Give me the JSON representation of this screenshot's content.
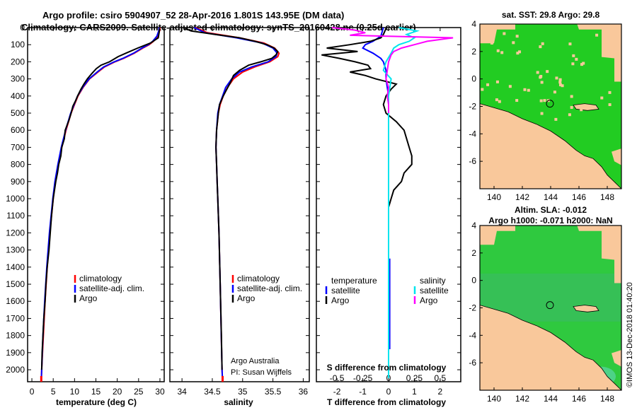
{
  "header": {
    "line1": "Argo profile: csiro 5904907_52 28-Apr-2016 1.801S 143.95E (DM data)",
    "line2": "Climatology: CARS2009. Satellite-adjusted climatology: synTS_20160428.nc (0.25d earlier)"
  },
  "colors": {
    "climatology": "#ff0000",
    "satellite": "#0000ff",
    "argo": "#000000",
    "satellite_salinity": "#00e5ee",
    "argo_salinity": "#ff00ff",
    "land": "#f9c89b",
    "ocean_sst": "#22cc22",
    "ocean_sla": "#2fc93f"
  },
  "depth_axis": {
    "ylim": [
      0,
      2070
    ],
    "ticks": [
      0,
      100,
      200,
      300,
      400,
      500,
      600,
      700,
      800,
      900,
      1000,
      1100,
      1200,
      1300,
      1400,
      1500,
      1600,
      1700,
      1800,
      1900,
      2000
    ]
  },
  "chart_data": [
    {
      "id": "temperature",
      "type": "line",
      "xlabel": "temperature (deg C)",
      "xlim": [
        -1,
        31
      ],
      "xticks": [
        0,
        5,
        10,
        15,
        20,
        25,
        30
      ],
      "xtick_labels": [
        "0",
        "5",
        "10",
        "15",
        "20",
        "25",
        "30"
      ],
      "ylim": [
        0,
        2070
      ],
      "legend": [
        "climatology",
        "satellite-adj. clim.",
        "Argo"
      ],
      "legend_position": "bottom-right",
      "series": [
        {
          "name": "climatology",
          "depth": [
            0,
            20,
            50,
            80,
            100,
            120,
            150,
            180,
            200,
            230,
            260,
            300,
            350,
            400,
            450,
            500,
            600,
            700,
            800,
            900,
            1000,
            1200,
            1400,
            1600,
            1800,
            2000,
            2070
          ],
          "values": [
            30.0,
            29.9,
            29.5,
            28.5,
            27.5,
            26.0,
            24.0,
            21.5,
            19.5,
            17.0,
            15.5,
            13.5,
            12.0,
            10.8,
            10.0,
            9.2,
            8.0,
            7.0,
            6.2,
            5.5,
            5.0,
            4.2,
            3.6,
            3.1,
            2.7,
            2.3,
            2.2
          ]
        },
        {
          "name": "satellite-adj. clim.",
          "depth": [
            0,
            20,
            50,
            80,
            100,
            120,
            150,
            180,
            200,
            230,
            260,
            300,
            350,
            400,
            450,
            500,
            600,
            700,
            800,
            900,
            1000,
            1200,
            1400,
            1600,
            1800,
            2000,
            2070
          ],
          "values": [
            29.8,
            29.7,
            29.3,
            28.3,
            27.3,
            25.8,
            23.8,
            21.3,
            19.3,
            16.8,
            15.3,
            13.4,
            11.9,
            10.7,
            9.9,
            9.1,
            7.9,
            6.9,
            6.1,
            5.4,
            4.9,
            4.1,
            3.5,
            3.0,
            2.6,
            2.3,
            2.2
          ]
        },
        {
          "name": "Argo",
          "depth": [
            5,
            30,
            60,
            90,
            120,
            150,
            170,
            200,
            220,
            240,
            270,
            300,
            330,
            360,
            400,
            430,
            460,
            500,
            540,
            600,
            650,
            700,
            750,
            800,
            850,
            900,
            1000,
            1100,
            1200,
            1300,
            1400,
            1500,
            1600,
            1700,
            1800,
            1900,
            2000
          ],
          "values": [
            29.9,
            29.8,
            29.6,
            27.8,
            24.8,
            22.0,
            20.2,
            18.2,
            16.2,
            15.1,
            14.0,
            13.0,
            12.2,
            11.5,
            10.7,
            10.2,
            9.6,
            9.2,
            8.7,
            7.8,
            7.6,
            7.0,
            6.8,
            6.3,
            6.0,
            5.6,
            5.0,
            4.6,
            4.3,
            4.0,
            3.6,
            3.3,
            3.1,
            2.8,
            2.6,
            2.4,
            2.3
          ]
        }
      ]
    },
    {
      "id": "salinity",
      "type": "line",
      "xlabel": "salinity",
      "xlim": [
        33.8,
        36.1
      ],
      "xticks": [
        34,
        34.5,
        35,
        35.5,
        36
      ],
      "xtick_labels": [
        "34",
        "34.5",
        "35",
        "35.5",
        "36"
      ],
      "ylim": [
        0,
        2070
      ],
      "legend": [
        "climatology",
        "satellite-adj. clim.",
        "Argo"
      ],
      "legend_position": "bottom-right",
      "annotation": [
        "Argo Australia",
        "PI: Susan Wijffels"
      ],
      "series": [
        {
          "name": "climatology",
          "depth": [
            0,
            30,
            60,
            90,
            120,
            150,
            170,
            200,
            230,
            260,
            300,
            350,
            400,
            450,
            500,
            600,
            700,
            800,
            900,
            1000,
            1200,
            1500,
            2000,
            2070
          ],
          "values": [
            34.22,
            34.42,
            34.95,
            35.35,
            35.53,
            35.6,
            35.58,
            35.45,
            35.2,
            35.0,
            34.85,
            34.75,
            34.68,
            34.63,
            34.6,
            34.57,
            34.56,
            34.57,
            34.58,
            34.59,
            34.61,
            34.63,
            34.66,
            34.67
          ]
        },
        {
          "name": "satellite-adj. clim.",
          "depth": [
            0,
            30,
            60,
            90,
            120,
            150,
            170,
            200,
            230,
            260,
            300,
            350,
            400,
            450,
            500,
            600,
            700,
            800,
            900,
            1000,
            1200,
            1500,
            2000,
            2070
          ],
          "values": [
            34.2,
            34.38,
            34.9,
            35.32,
            35.5,
            35.57,
            35.55,
            35.42,
            35.15,
            34.95,
            34.82,
            34.72,
            34.67,
            34.62,
            34.59,
            34.57,
            34.56,
            34.57,
            34.58,
            34.59,
            34.61,
            34.63,
            34.66,
            34.67
          ]
        },
        {
          "name": "Argo",
          "depth": [
            5,
            20,
            40,
            60,
            80,
            100,
            120,
            140,
            160,
            180,
            200,
            220,
            250,
            280,
            320,
            360,
            400,
            450,
            500,
            600,
            700,
            800,
            900,
            1000,
            1200,
            1500,
            1800,
            2000
          ],
          "values": [
            34.05,
            34.15,
            34.55,
            34.95,
            35.2,
            35.4,
            35.52,
            35.58,
            35.55,
            35.48,
            35.3,
            35.1,
            34.95,
            34.85,
            34.8,
            34.74,
            34.68,
            34.62,
            34.6,
            34.57,
            34.56,
            34.57,
            34.58,
            34.59,
            34.61,
            34.63,
            34.65,
            34.66
          ]
        }
      ]
    },
    {
      "id": "difference",
      "type": "line",
      "xlabel": "T difference from climatology",
      "xlabel_secondary": "S difference from climatology",
      "xlim": [
        -2.8,
        2.8
      ],
      "xticks": [
        -2,
        -1,
        0,
        1,
        2
      ],
      "xtick_labels": [
        "-2",
        "-1",
        "0",
        "1",
        "2"
      ],
      "secondary_xticks": [
        -2,
        -1,
        0,
        1,
        2
      ],
      "secondary_xtick_labels": [
        "-0.5",
        "-0.25",
        "0",
        "0.25",
        "0.5"
      ],
      "ylim": [
        0,
        2070
      ],
      "legend_temperature": [
        "temperature",
        "satellite",
        "Argo"
      ],
      "legend_salinity": [
        "salinity",
        "satellite",
        "Argo"
      ],
      "legend_position": "bottom",
      "series": [
        {
          "name": "temperature satellite",
          "depth": [
            0,
            50,
            80,
            100,
            120,
            150,
            180,
            200,
            250,
            300,
            350,
            400,
            500,
            600,
            800,
            1000,
            1500,
            2000
          ],
          "values": [
            -0.2,
            -0.3,
            -0.6,
            -0.9,
            -1.0,
            -0.6,
            -0.3,
            -0.2,
            -0.1,
            -0.1,
            -0.05,
            0.0,
            0.0,
            0.0,
            0.0,
            0.0,
            0.0,
            0.0
          ]
        },
        {
          "name": "temperature Argo",
          "depth": [
            5,
            40,
            60,
            80,
            100,
            120,
            140,
            160,
            180,
            200,
            220,
            240,
            260,
            280,
            300,
            330,
            360,
            400,
            450,
            500,
            550,
            600,
            650,
            700,
            750,
            800,
            850,
            900,
            950,
            1000,
            1050
          ],
          "values": [
            -0.1,
            -0.2,
            -0.3,
            -0.7,
            -1.5,
            -2.4,
            -1.2,
            -2.6,
            -1.9,
            -1.3,
            -0.8,
            -0.7,
            -1.5,
            -0.9,
            -0.5,
            0.3,
            0.1,
            -0.1,
            -0.2,
            -0.1,
            0.3,
            0.6,
            0.7,
            0.8,
            0.9,
            0.9,
            0.6,
            0.5,
            0.2,
            0.1,
            0.0
          ]
        },
        {
          "name": "salinity satellite",
          "depth": [
            0,
            20,
            40,
            60,
            80,
            100,
            120,
            150,
            200,
            250,
            300,
            400,
            500,
            800,
            1000,
            1500,
            2000
          ],
          "values": [
            0.4,
            1.1,
            0.7,
            1.0,
            0.8,
            0.4,
            0.2,
            0.1,
            -0.1,
            -0.2,
            0.1,
            0.0,
            0.0,
            0.0,
            0.0,
            0.0,
            0.0
          ]
        },
        {
          "name": "salinity Argo",
          "depth": [
            0,
            15,
            30,
            45,
            60,
            80,
            100,
            120,
            140,
            160,
            200,
            250,
            300,
            350,
            400,
            450,
            500
          ],
          "values": [
            -2.2,
            -1.3,
            -0.9,
            -1.5,
            2.5,
            1.5,
            1.0,
            0.5,
            0.2,
            0.1,
            0.0,
            -0.05,
            -0.1,
            0.0,
            -0.05,
            0.0,
            0.0
          ]
        }
      ]
    },
    {
      "id": "sst_map",
      "type": "heatmap",
      "title": "sat. SST: 29.8  Argo: 29.8",
      "xlim": [
        139,
        149
      ],
      "ylim": [
        -8,
        4
      ],
      "xticks": [
        140,
        142,
        144,
        146,
        148
      ],
      "yticks": [
        -6,
        -4,
        -2,
        0,
        2,
        4
      ],
      "xtick_labels": [
        "140",
        "142",
        "144",
        "146",
        "148"
      ],
      "ytick_labels": [
        "-6",
        "-4",
        "-2",
        "0",
        "2",
        "4"
      ],
      "marker": {
        "lon": 143.95,
        "lat": -1.801
      }
    },
    {
      "id": "sla_map",
      "type": "heatmap",
      "title": "Altim. SLA: -0.012",
      "subtitle": "Argo h1000: -0.071  h2000: NaN",
      "xlim": [
        139,
        149
      ],
      "ylim": [
        -8,
        4
      ],
      "xticks": [
        140,
        142,
        144,
        146,
        148
      ],
      "yticks": [
        -6,
        -4,
        -2,
        0,
        2,
        4
      ],
      "xtick_labels": [
        "140",
        "142",
        "144",
        "146",
        "148"
      ],
      "ytick_labels": [
        "-6",
        "-4",
        "-2",
        "0",
        "2",
        "4"
      ],
      "marker": {
        "lon": 143.95,
        "lat": -1.801
      }
    }
  ],
  "footer": {
    "credit": "©IMOS 13-Dec-2018 01:40:20"
  }
}
